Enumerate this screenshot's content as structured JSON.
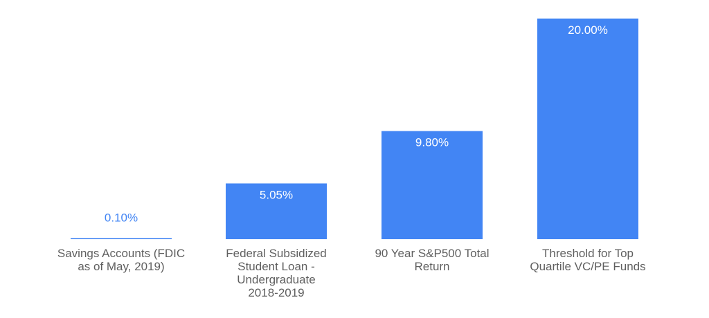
{
  "chart_data": {
    "type": "bar",
    "categories": [
      [
        "Savings Accounts (FDIC",
        "as of May, 2019)"
      ],
      [
        "Federal Subsidized",
        "Student Loan -",
        "Undergraduate",
        "2018-2019"
      ],
      [
        "90 Year S&P500 Total",
        "Return"
      ],
      [
        "Threshold for Top",
        "Quartile VC/PE Funds"
      ]
    ],
    "values": [
      0.1,
      5.05,
      9.8,
      20.0
    ],
    "value_labels": [
      "0.10%",
      "5.05%",
      "9.80%",
      "20.00%"
    ],
    "ylim": [
      0,
      20.3
    ],
    "grid": false,
    "legend": "none",
    "colors": {
      "bar": "#4285f4",
      "label_inside": "#ffffff",
      "label_outside": "#4285f4",
      "category_text": "#5f5f5f"
    }
  }
}
